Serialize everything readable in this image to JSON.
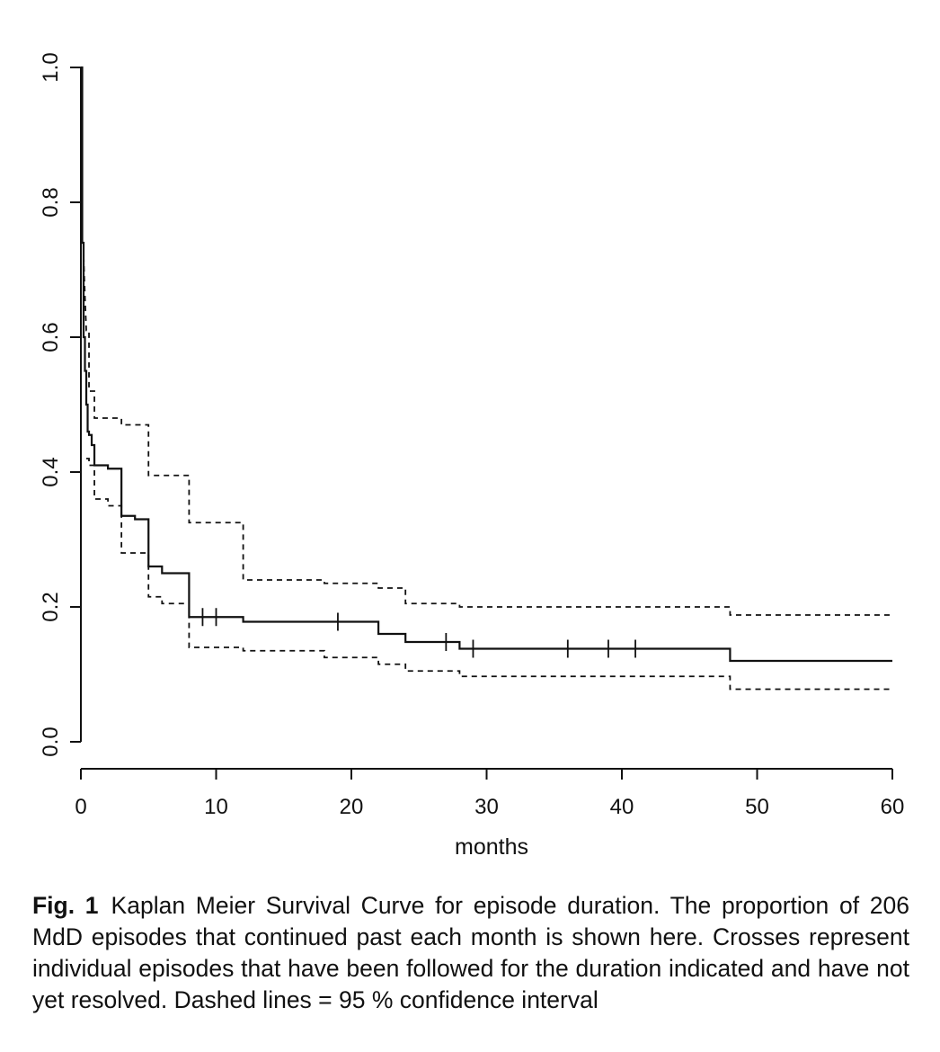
{
  "caption": {
    "label": "Fig. 1",
    "text": "Kaplan Meier Survival Curve for episode duration. The proportion of 206 MdD episodes that continued past each month is shown here. Crosses represent individual episodes that have been followed for the duration indicated and have not yet resolved. Dashed lines = 95 % confidence interval"
  },
  "chart_data": {
    "type": "line",
    "xlabel": "months",
    "ylabel": "",
    "xlim": [
      0,
      60
    ],
    "ylim": [
      0,
      1.0
    ],
    "x_ticks": [
      "0",
      "10",
      "20",
      "30",
      "40",
      "50",
      "60"
    ],
    "y_ticks": [
      "0.0",
      "0.2",
      "0.4",
      "0.6",
      "0.8",
      "1.0"
    ],
    "grid": false,
    "legend": "none",
    "series": [
      {
        "role": "survival estimate",
        "style": "solid",
        "step": true,
        "x": [
          0,
          0.1,
          0.2,
          0.3,
          0.4,
          0.5,
          0.6,
          0.8,
          1,
          2,
          3,
          4,
          5,
          6,
          8,
          12,
          22,
          24,
          28,
          48,
          60
        ],
        "y": [
          1.0,
          0.74,
          0.6,
          0.55,
          0.5,
          0.46,
          0.455,
          0.44,
          0.41,
          0.405,
          0.335,
          0.33,
          0.26,
          0.25,
          0.185,
          0.178,
          0.16,
          0.148,
          0.138,
          0.12,
          0.12
        ]
      },
      {
        "role": "upper 95% confidence limit",
        "style": "dashed",
        "step": true,
        "x": [
          0.4,
          0.6,
          1,
          3,
          5,
          8,
          12,
          18,
          22,
          24,
          28,
          48,
          60
        ],
        "y": [
          0.61,
          0.52,
          0.48,
          0.47,
          0.395,
          0.325,
          0.24,
          0.235,
          0.228,
          0.205,
          0.2,
          0.188,
          0.188
        ],
        "prefix_x": [
          0.2,
          0.3,
          0.4
        ],
        "prefix_y": [
          0.72,
          0.66,
          0.61
        ]
      },
      {
        "role": "lower 95% confidence limit",
        "style": "dashed",
        "step": true,
        "x": [
          0.4,
          0.6,
          1,
          2,
          3,
          5,
          6,
          8,
          12,
          18,
          22,
          24,
          28,
          48,
          60
        ],
        "y": [
          0.42,
          0.41,
          0.36,
          0.35,
          0.28,
          0.215,
          0.205,
          0.14,
          0.135,
          0.125,
          0.115,
          0.105,
          0.097,
          0.078,
          0.078
        ]
      }
    ],
    "censored": {
      "marker": "cross",
      "x": [
        9,
        10,
        19,
        27,
        29,
        36,
        39,
        41
      ]
    }
  }
}
